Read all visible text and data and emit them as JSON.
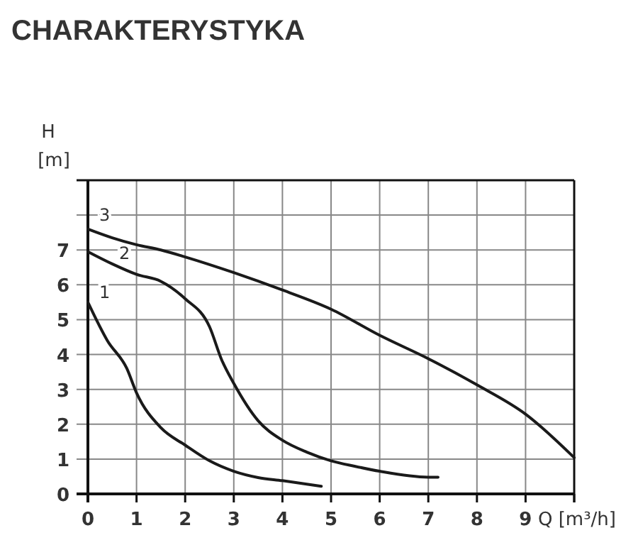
{
  "chart_data": {
    "type": "line",
    "title": "CHARAKTERYSTYKA",
    "ylabel": "H [m]",
    "xlabel": "Q [m³/h]",
    "xlim": [
      0,
      10
    ],
    "xticks": [
      0,
      1,
      2,
      3,
      4,
      5,
      6,
      7,
      8,
      9,
      {
        "value": 10,
        "label": null
      }
    ],
    "ylim": [
      0,
      9
    ],
    "yticks": [
      0,
      1,
      2,
      3,
      4,
      5,
      6,
      7,
      {
        "value": 8,
        "label": null
      },
      {
        "value": 9,
        "label": null
      }
    ],
    "grid": true,
    "marker": "none",
    "line_style": "solid",
    "series": [
      {
        "name": "1",
        "color": "#1a1a1a",
        "x": [
          0,
          0.4,
          0.8,
          1,
          1.5,
          2,
          2.5,
          3,
          3.5,
          4,
          4.8
        ],
        "values": [
          5.5,
          4.4,
          3.6,
          2.9,
          1.9,
          1.4,
          0.95,
          0.65,
          0.47,
          0.38,
          0.22
        ]
      },
      {
        "name": "2",
        "color": "#1a1a1a",
        "x": [
          0,
          0.5,
          1,
          1.5,
          2,
          2.5,
          2.75,
          3,
          3.5,
          4,
          4.5,
          5,
          5.5,
          6,
          7,
          7.2
        ],
        "values": [
          6.95,
          6.6,
          6.3,
          6.1,
          5.6,
          4.8,
          3.85,
          3.17,
          2.1,
          1.54,
          1.2,
          0.95,
          0.79,
          0.65,
          0.48,
          0.48
        ]
      },
      {
        "name": "3",
        "color": "#1a1a1a",
        "x": [
          0,
          0.5,
          1,
          1.5,
          2,
          3,
          4,
          5,
          6,
          7,
          8,
          9,
          10
        ],
        "values": [
          7.6,
          7.35,
          7.15,
          7.0,
          6.8,
          6.35,
          5.85,
          5.3,
          4.55,
          3.88,
          3.13,
          2.29,
          1.04
        ]
      }
    ]
  }
}
